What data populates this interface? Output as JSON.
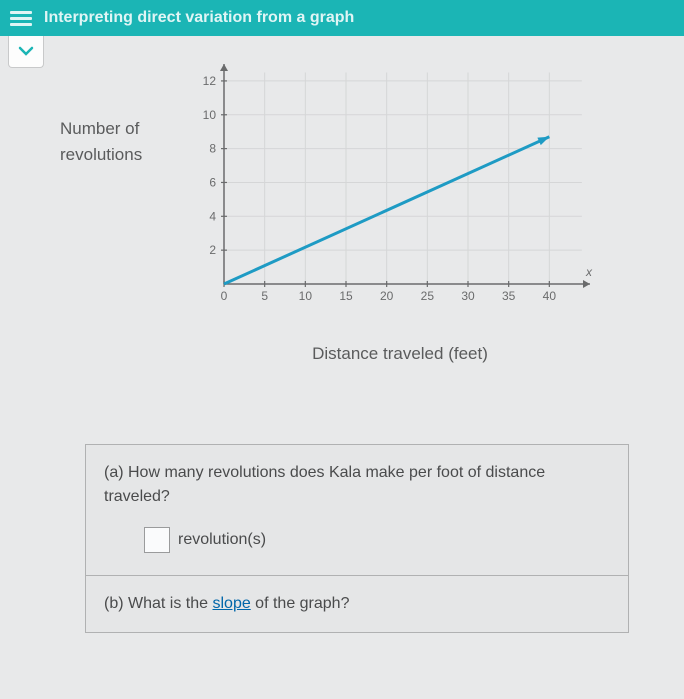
{
  "header": {
    "title": "Interpreting direct variation from a graph"
  },
  "chart": {
    "type": "line",
    "y_axis_label": "Number of revolutions",
    "x_axis_label": "Distance traveled (feet)",
    "x_ticks": [
      0,
      5,
      10,
      15,
      20,
      25,
      30,
      35,
      40
    ],
    "y_ticks": [
      0,
      2,
      4,
      6,
      8,
      10,
      12
    ],
    "xlim": [
      0,
      45
    ],
    "ylim": [
      0,
      13
    ],
    "line_points": [
      [
        0,
        0
      ],
      [
        40,
        8.7
      ]
    ],
    "line_color": "#1e9bc4",
    "line_width": 3,
    "grid_color": "#d5d6d7",
    "axis_color": "#6a6b6c",
    "tick_label_color": "#6a6b6c",
    "tick_fontsize": 12,
    "axis_var_x": "x",
    "background_color": "#e8e9ea"
  },
  "questions": {
    "a": {
      "text": "(a) How many revolutions does Kala make per foot of distance traveled?",
      "unit": "revolution(s)"
    },
    "b": {
      "prefix": "(b) What is the ",
      "link": "slope",
      "suffix": " of the graph?"
    }
  }
}
